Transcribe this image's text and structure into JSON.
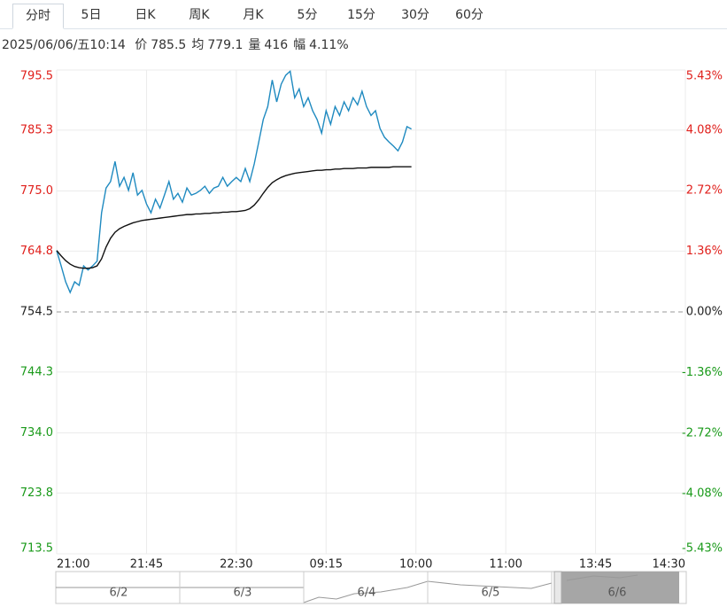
{
  "tabs": [
    "分时",
    "5日",
    "日K",
    "周K",
    "月K",
    "5分",
    "15分",
    "30分",
    "60分"
  ],
  "info": {
    "datetime": "2025/06/06/五10:14",
    "items": [
      {
        "label": "价",
        "value": "785.5"
      },
      {
        "label": "均",
        "value": "779.1"
      },
      {
        "label": "量",
        "value": "416"
      },
      {
        "label": "幅",
        "value": "4.11%"
      }
    ]
  },
  "chart_data": {
    "type": "line",
    "x": [
      0,
      2,
      4,
      6,
      8,
      10,
      12,
      14,
      16,
      18,
      20,
      22,
      24,
      26,
      28,
      30,
      32,
      34,
      36,
      38,
      40,
      42,
      44,
      46,
      48,
      50,
      52,
      54,
      56,
      58,
      60,
      62,
      64,
      66,
      68,
      70,
      72,
      74,
      76,
      78,
      80,
      82,
      84,
      86,
      88,
      90,
      92,
      94,
      96,
      98,
      100,
      102,
      104,
      106,
      108,
      110,
      112,
      114,
      116,
      118,
      120,
      122,
      124,
      126,
      128,
      130,
      132,
      134,
      136,
      138,
      140,
      142,
      144,
      146,
      148,
      150,
      152,
      154,
      156,
      158
    ],
    "series": [
      {
        "color": "#1f8ac0",
        "values": [
          764.9,
          762.3,
          759.6,
          757.8,
          759.6,
          759.0,
          762.3,
          761.6,
          762.3,
          763.1,
          771.3,
          775.5,
          776.6,
          780.0,
          775.8,
          777.3,
          775.1,
          778.1,
          774.3,
          775.1,
          772.8,
          771.3,
          773.6,
          772.1,
          774.3,
          776.6,
          773.6,
          774.6,
          773.1,
          775.5,
          774.3,
          774.6,
          775.1,
          775.8,
          774.6,
          775.5,
          775.8,
          777.3,
          775.8,
          776.6,
          777.3,
          776.6,
          778.8,
          776.6,
          779.6,
          783.3,
          787.1,
          789.3,
          793.8,
          790.1,
          793.1,
          794.6,
          795.3,
          790.8,
          792.3,
          789.3,
          790.8,
          788.6,
          787.1,
          784.8,
          788.6,
          786.3,
          789.3,
          787.8,
          790.1,
          788.6,
          790.8,
          789.6,
          791.9,
          789.3,
          787.8,
          788.6,
          785.6,
          784.1,
          783.3,
          782.6,
          781.8,
          783.3,
          785.9,
          785.5
        ]
      },
      {
        "color": "#111111",
        "values": [
          764.9,
          764.0,
          763.2,
          762.6,
          762.2,
          762.0,
          761.9,
          761.9,
          762.0,
          762.3,
          763.5,
          765.5,
          767.0,
          768.0,
          768.6,
          769.0,
          769.3,
          769.6,
          769.8,
          770.0,
          770.1,
          770.2,
          770.3,
          770.4,
          770.5,
          770.6,
          770.7,
          770.8,
          770.9,
          771.0,
          771.0,
          771.1,
          771.1,
          771.2,
          771.2,
          771.3,
          771.3,
          771.4,
          771.4,
          771.5,
          771.5,
          771.6,
          771.7,
          772.0,
          772.6,
          773.5,
          774.6,
          775.6,
          776.4,
          776.9,
          777.3,
          777.6,
          777.8,
          778.0,
          778.1,
          778.2,
          778.3,
          778.4,
          778.5,
          778.5,
          778.6,
          778.6,
          778.7,
          778.7,
          778.8,
          778.8,
          778.8,
          778.9,
          778.9,
          778.9,
          779.0,
          779.0,
          779.0,
          779.0,
          779.0,
          779.1,
          779.1,
          779.1,
          779.1,
          779.1
        ]
      }
    ],
    "xlim": [
      0,
      280
    ],
    "xticks": [
      {
        "value": 0,
        "label": "21:00"
      },
      {
        "value": 40,
        "label": "21:45"
      },
      {
        "value": 80,
        "label": "22:30"
      },
      {
        "value": 120,
        "label": "09:15"
      },
      {
        "value": 160,
        "label": "10:00"
      },
      {
        "value": 200,
        "label": "11:00"
      },
      {
        "value": 240,
        "label": "13:45"
      },
      {
        "value": 280,
        "label": "14:30"
      }
    ],
    "ylim": [
      713.5,
      795.5
    ],
    "yticks": [
      795.5,
      785.3,
      {
        "value": 775,
        "label": "775.0"
      },
      764.8,
      754.5,
      744.3,
      {
        "value": 734,
        "label": "734.0"
      },
      723.8,
      713.5
    ],
    "y2lim": [
      -5.43,
      5.43
    ],
    "y2ticks": [
      {
        "value": 5.43,
        "label": "5.43%"
      },
      {
        "value": 4.08,
        "label": "4.08%"
      },
      {
        "value": 2.72,
        "label": "2.72%"
      },
      {
        "value": 1.36,
        "label": "1.36%"
      },
      {
        "value": 0,
        "label": "0.00%"
      },
      {
        "value": -1.36,
        "label": "-1.36%"
      },
      {
        "value": -2.72,
        "label": "-2.72%"
      },
      {
        "value": -4.08,
        "label": "-4.08%"
      },
      {
        "value": -5.43,
        "label": "-5.43%"
      }
    ],
    "grid": true,
    "up_color": "#e0201c",
    "down_color": "#1a9a1a"
  },
  "navigator": {
    "labels": [
      "6/2",
      "6/3",
      "6/4",
      "6/5",
      "6/6"
    ]
  }
}
